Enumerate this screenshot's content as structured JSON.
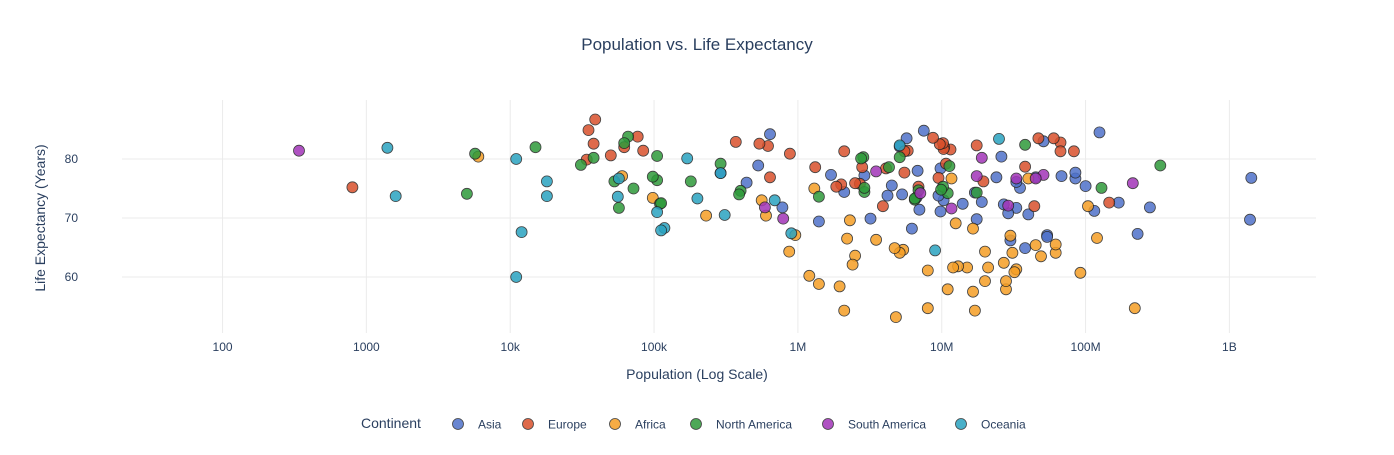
{
  "chart_data": {
    "type": "scatter",
    "title": "Population vs. Life Expectancy",
    "xlabel": "Population (Log Scale)",
    "ylabel": "Life Expectancy (Years)",
    "x_scale": "log",
    "xlim": [
      20,
      4000000000
    ],
    "ylim": [
      50.5,
      90
    ],
    "grid": true,
    "x_ticks": [
      {
        "value": 100,
        "label": "100"
      },
      {
        "value": 1000,
        "label": "1000"
      },
      {
        "value": 10000,
        "label": "10k"
      },
      {
        "value": 100000,
        "label": "100k"
      },
      {
        "value": 1000000,
        "label": "1M"
      },
      {
        "value": 10000000,
        "label": "10M"
      },
      {
        "value": 100000000,
        "label": "100M"
      },
      {
        "value": 1000000000,
        "label": "1B"
      }
    ],
    "y_ticks": [
      {
        "value": 60,
        "label": "60"
      },
      {
        "value": 70,
        "label": "70"
      },
      {
        "value": 80,
        "label": "80"
      }
    ],
    "legend": {
      "title": "Continent",
      "placement": "bottom-center"
    },
    "series": [
      {
        "name": "Asia",
        "color": "#4f72c9",
        "points": [
          [
            1420000000,
            76.8
          ],
          [
            1390000000,
            69.7
          ],
          [
            280000000,
            71.8
          ],
          [
            230000000,
            67.3
          ],
          [
            170000000,
            72.6
          ],
          [
            125000000,
            84.5
          ],
          [
            115000000,
            71.2
          ],
          [
            100000000,
            75.4
          ],
          [
            85000000,
            76.7
          ],
          [
            85000000,
            77.7
          ],
          [
            68000000,
            77.1
          ],
          [
            54000000,
            67.1
          ],
          [
            54000000,
            66.8
          ],
          [
            51000000,
            83.0
          ],
          [
            45000000,
            76.9
          ],
          [
            40000000,
            70.6
          ],
          [
            38000000,
            64.9
          ],
          [
            35000000,
            75.1
          ],
          [
            33000000,
            76.1
          ],
          [
            33000000,
            71.7
          ],
          [
            30000000,
            66.2
          ],
          [
            29000000,
            70.8
          ],
          [
            27000000,
            72.3
          ],
          [
            26000000,
            80.4
          ],
          [
            24000000,
            76.9
          ],
          [
            19000000,
            72.7
          ],
          [
            17500000,
            69.8
          ],
          [
            17000000,
            74.3
          ],
          [
            14000000,
            72.4
          ],
          [
            10300000,
            73.0
          ],
          [
            9800000,
            71.1
          ],
          [
            9800000,
            78.4
          ],
          [
            9500000,
            73.8
          ],
          [
            7500000,
            84.8
          ],
          [
            7000000,
            71.4
          ],
          [
            6800000,
            78.0
          ],
          [
            6700000,
            73.5
          ],
          [
            6200000,
            68.2
          ],
          [
            5700000,
            83.5
          ],
          [
            5300000,
            74.0
          ],
          [
            5100000,
            82.1
          ],
          [
            4500000,
            75.5
          ],
          [
            4200000,
            73.8
          ],
          [
            3200000,
            69.9
          ],
          [
            2900000,
            77.2
          ],
          [
            2100000,
            74.4
          ],
          [
            1700000,
            77.3
          ],
          [
            1400000,
            69.4
          ],
          [
            780000,
            71.8
          ],
          [
            640000,
            84.2
          ],
          [
            530000,
            78.9
          ],
          [
            440000,
            76.0
          ],
          [
            290000,
            77.6
          ]
        ]
      },
      {
        "name": "Europe",
        "color": "#d9512c",
        "points": [
          [
            146000000,
            72.6
          ],
          [
            83000000,
            81.3
          ],
          [
            67000000,
            82.8
          ],
          [
            67000000,
            81.3
          ],
          [
            60000000,
            83.5
          ],
          [
            47000000,
            83.5
          ],
          [
            44000000,
            72.0
          ],
          [
            38000000,
            78.7
          ],
          [
            19500000,
            76.2
          ],
          [
            17500000,
            82.3
          ],
          [
            11500000,
            81.6
          ],
          [
            10700000,
            79.2
          ],
          [
            10400000,
            82.0
          ],
          [
            10300000,
            81.7
          ],
          [
            10200000,
            82.7
          ],
          [
            9700000,
            82.5
          ],
          [
            9500000,
            76.8
          ],
          [
            8700000,
            83.6
          ],
          [
            6900000,
            75.3
          ],
          [
            5800000,
            81.4
          ],
          [
            5500000,
            81.3
          ],
          [
            5500000,
            77.7
          ],
          [
            4100000,
            78.4
          ],
          [
            3900000,
            72.0
          ],
          [
            2800000,
            78.6
          ],
          [
            2700000,
            75.8
          ],
          [
            2500000,
            75.9
          ],
          [
            2100000,
            81.3
          ],
          [
            2000000,
            75.7
          ],
          [
            1850000,
            75.3
          ],
          [
            1320000,
            78.6
          ],
          [
            620000,
            82.2
          ],
          [
            640000,
            76.9
          ],
          [
            540000,
            82.6
          ],
          [
            370000,
            82.9
          ],
          [
            77000,
            83.8
          ],
          [
            84000,
            81.4
          ],
          [
            62000,
            82.0
          ],
          [
            50000,
            80.6
          ],
          [
            39000,
            86.7
          ],
          [
            38000,
            82.6
          ],
          [
            35000,
            84.9
          ],
          [
            34000,
            79.9
          ],
          [
            880000,
            80.9
          ],
          [
            800,
            75.2
          ]
        ]
      },
      {
        "name": "Africa",
        "color": "#f59e25",
        "points": [
          [
            220000000,
            54.7
          ],
          [
            120000000,
            66.6
          ],
          [
            104000000,
            72.0
          ],
          [
            92000000,
            60.7
          ],
          [
            62000000,
            64.1
          ],
          [
            62000000,
            65.5
          ],
          [
            49000000,
            63.5
          ],
          [
            45000000,
            65.4
          ],
          [
            40000000,
            76.7
          ],
          [
            33000000,
            61.3
          ],
          [
            32000000,
            60.8
          ],
          [
            31000000,
            64.1
          ],
          [
            30000000,
            67.0
          ],
          [
            28000000,
            57.9
          ],
          [
            28000000,
            59.3
          ],
          [
            27000000,
            62.4
          ],
          [
            21000000,
            61.6
          ],
          [
            20000000,
            64.3
          ],
          [
            20000000,
            59.3
          ],
          [
            17000000,
            54.3
          ],
          [
            16500000,
            57.5
          ],
          [
            16500000,
            68.2
          ],
          [
            15000000,
            61.6
          ],
          [
            13000000,
            61.8
          ],
          [
            12500000,
            69.1
          ],
          [
            12000000,
            61.6
          ],
          [
            11700000,
            76.7
          ],
          [
            11000000,
            57.9
          ],
          [
            8000000,
            54.7
          ],
          [
            8000000,
            61.1
          ],
          [
            5400000,
            64.6
          ],
          [
            5100000,
            64.1
          ],
          [
            4800000,
            53.2
          ],
          [
            4700000,
            64.9
          ],
          [
            3500000,
            66.3
          ],
          [
            2500000,
            63.6
          ],
          [
            2400000,
            62.1
          ],
          [
            2300000,
            69.6
          ],
          [
            2200000,
            66.5
          ],
          [
            2100000,
            54.3
          ],
          [
            1950000,
            58.4
          ],
          [
            1400000,
            58.8
          ],
          [
            1300000,
            75.0
          ],
          [
            1200000,
            60.2
          ],
          [
            960000,
            67.1
          ],
          [
            870000,
            64.3
          ],
          [
            600000,
            70.4
          ],
          [
            560000,
            73.0
          ],
          [
            230000,
            70.4
          ],
          [
            98000,
            73.4
          ],
          [
            60000,
            77.1
          ],
          [
            6000,
            80.4
          ]
        ]
      },
      {
        "name": "North America",
        "color": "#2e9a3a",
        "points": [
          [
            331000000,
            78.9
          ],
          [
            129000000,
            75.1
          ],
          [
            38000000,
            82.4
          ],
          [
            17500000,
            74.3
          ],
          [
            11300000,
            78.8
          ],
          [
            11000000,
            74.2
          ],
          [
            10200000,
            75.3
          ],
          [
            9900000,
            74.8
          ],
          [
            6900000,
            74.7
          ],
          [
            6500000,
            73.1
          ],
          [
            6500000,
            73.3
          ],
          [
            5100000,
            80.3
          ],
          [
            4300000,
            78.6
          ],
          [
            2900000,
            74.4
          ],
          [
            2900000,
            75.1
          ],
          [
            2850000,
            80.3
          ],
          [
            2750000,
            80.1
          ],
          [
            1400000,
            73.6
          ],
          [
            400000,
            74.6
          ],
          [
            390000,
            74.0
          ],
          [
            290000,
            79.2
          ],
          [
            180000,
            76.2
          ],
          [
            110000,
            72.4
          ],
          [
            105000,
            80.5
          ],
          [
            112000,
            72.5
          ],
          [
            105000,
            76.4
          ],
          [
            98000,
            77.0
          ],
          [
            72000,
            75.0
          ],
          [
            66000,
            83.8
          ],
          [
            62000,
            82.7
          ],
          [
            57000,
            71.7
          ],
          [
            53000,
            76.2
          ],
          [
            38000,
            80.2
          ],
          [
            31000,
            79.0
          ],
          [
            15000,
            82.0
          ],
          [
            5700,
            80.9
          ],
          [
            5000,
            74.1
          ]
        ]
      },
      {
        "name": "South America",
        "color": "#a234b8",
        "points": [
          [
            213000000,
            75.9
          ],
          [
            51000000,
            77.3
          ],
          [
            45000000,
            76.7
          ],
          [
            33000000,
            76.7
          ],
          [
            29000000,
            72.1
          ],
          [
            19000000,
            80.2
          ],
          [
            17500000,
            77.1
          ],
          [
            11700000,
            71.6
          ],
          [
            7100000,
            74.2
          ],
          [
            3500000,
            77.9
          ],
          [
            790000,
            69.9
          ],
          [
            590000,
            71.8
          ],
          [
            340,
            81.4
          ]
        ]
      },
      {
        "name": "Oceania",
        "color": "#2aa3c0",
        "points": [
          [
            25000000,
            83.4
          ],
          [
            9000000,
            64.5
          ],
          [
            5100000,
            82.3
          ],
          [
            900000,
            67.4
          ],
          [
            690000,
            73.0
          ],
          [
            290000,
            77.6
          ],
          [
            310000,
            70.5
          ],
          [
            200000,
            73.3
          ],
          [
            170000,
            80.1
          ],
          [
            118000,
            68.3
          ],
          [
            112000,
            67.9
          ],
          [
            105000,
            71.0
          ],
          [
            57000,
            76.7
          ],
          [
            56000,
            73.6
          ],
          [
            18000,
            76.2
          ],
          [
            18000,
            73.7
          ],
          [
            12000,
            67.6
          ],
          [
            11000,
            80.0
          ],
          [
            11000,
            60.0
          ],
          [
            1600,
            73.7
          ],
          [
            1400,
            81.9
          ]
        ]
      }
    ]
  }
}
